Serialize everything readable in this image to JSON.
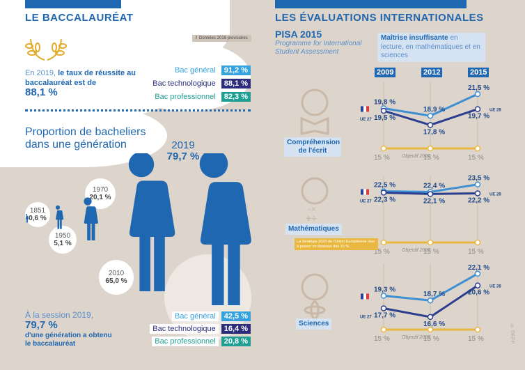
{
  "left": {
    "title": "LE BACCALAURÉAT",
    "note": "Données 2019 provisoires",
    "note_icon": "!",
    "intro_light": "En 2019,",
    "intro_bold": "le taux de réussite au baccalauréat est de",
    "rate": "88,1 %",
    "pass_rates": [
      {
        "label": "Bac général",
        "value": "91,2 %",
        "color": "#35a3de"
      },
      {
        "label": "Bac technologique",
        "value": "88,1 %",
        "color": "#2b2c7c"
      },
      {
        "label": "Bac professionnel",
        "value": "82,3 %",
        "color": "#1f9e94"
      }
    ],
    "proportion_title": "Proportion de bacheliers dans une génération",
    "timeline": [
      {
        "year": "1851",
        "value": "0,6 %"
      },
      {
        "year": "1950",
        "value": "5,1 %"
      },
      {
        "year": "1970",
        "value": "20,1 %"
      },
      {
        "year": "2010",
        "value": "65,0 %"
      },
      {
        "year": "2019",
        "value": "79,7 %"
      }
    ],
    "session_light": "À la session 2019,",
    "session_value": "79,7 %",
    "session_bold": "d'une génération a obtenu le baccalauréat",
    "generation_shares": [
      {
        "label": "Bac général",
        "value": "42,5 %",
        "color": "#35a3de"
      },
      {
        "label": "Bac technologique",
        "value": "16,4 %",
        "color": "#2b2c7c"
      },
      {
        "label": "Bac professionnel",
        "value": "20,8 %",
        "color": "#1f9e94"
      }
    ]
  },
  "right": {
    "title": "LES ÉVALUATIONS INTERNATIONALES",
    "pisa": "PISA 2015",
    "pisa_sub": "Programme for International Student Assessment",
    "legend_bold": "Maîtrise insuffisante",
    "legend_rest": "en lecture, en mathématiques et en sciences",
    "france_label": "FR",
    "ue_label": "UE 27",
    "ue28_label": "UE 28",
    "objective_label": "Objectif 2020",
    "strategy_note": "La Stratégie 2020 de l'Union Européenne vise à passer en dessous des 15 %.",
    "credit": "© DEPP",
    "colors": {
      "france": "#3d8fd3",
      "ue": "#2b3d8f",
      "objective": "#e9b840"
    }
  },
  "chart_data": [
    {
      "type": "line",
      "title": "Compréhension de l'écrit",
      "x": [
        "2009",
        "2012",
        "2015"
      ],
      "series": [
        {
          "name": "France",
          "values": [
            19.8,
            18.9,
            21.5
          ],
          "labels": [
            "19,8 %",
            "18,9 %",
            "21,5 %"
          ]
        },
        {
          "name": "UE",
          "values": [
            19.5,
            17.8,
            19.7
          ],
          "labels": [
            "19,5 %",
            "17,8 %",
            "19,7 %"
          ]
        },
        {
          "name": "Objectif 2020",
          "values": [
            15,
            15,
            15
          ],
          "labels": [
            "15 %",
            "15 %",
            "15 %"
          ]
        }
      ]
    },
    {
      "type": "line",
      "title": "Mathématiques",
      "x": [
        "2009",
        "2012",
        "2015"
      ],
      "series": [
        {
          "name": "France",
          "values": [
            22.5,
            22.4,
            23.5
          ],
          "labels": [
            "22,5 %",
            "22,4 %",
            "23,5 %"
          ]
        },
        {
          "name": "UE",
          "values": [
            22.3,
            22.1,
            22.2
          ],
          "labels": [
            "22,3 %",
            "22,1 %",
            "22,2 %"
          ]
        },
        {
          "name": "Objectif 2020",
          "values": [
            15,
            15,
            15
          ],
          "labels": [
            "15 %",
            "15 %",
            "15 %"
          ]
        }
      ]
    },
    {
      "type": "line",
      "title": "Sciences",
      "x": [
        "2009",
        "2012",
        "2015"
      ],
      "series": [
        {
          "name": "France",
          "values": [
            19.3,
            18.7,
            22.1
          ],
          "labels": [
            "19,3 %",
            "18,7 %",
            "22,1 %"
          ]
        },
        {
          "name": "UE",
          "values": [
            17.7,
            16.6,
            20.6
          ],
          "labels": [
            "17,7 %",
            "16,6 %",
            "20,6 %"
          ]
        },
        {
          "name": "Objectif 2020",
          "values": [
            15,
            15,
            15
          ],
          "labels": [
            "15 %",
            "15 %",
            "15 %"
          ]
        }
      ]
    }
  ]
}
